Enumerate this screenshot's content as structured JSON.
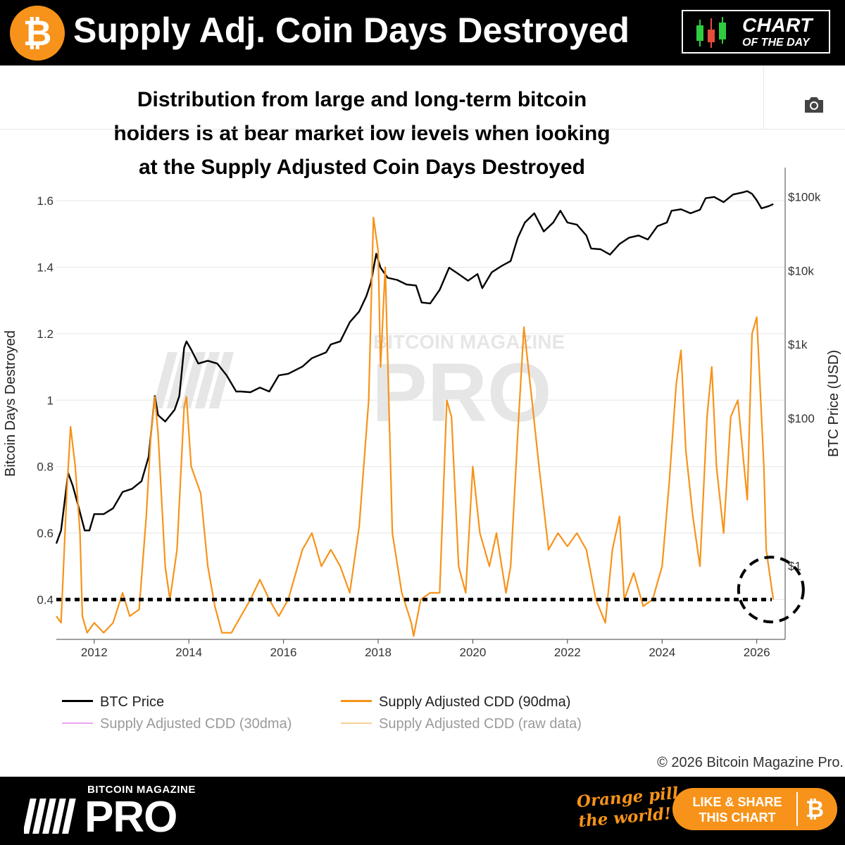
{
  "header": {
    "title": "Supply Adj. Coin Days Destroyed",
    "badge_line1": "CHART",
    "badge_line2": "OF THE DAY",
    "btc_symbol": "₿"
  },
  "subtitle": {
    "line1": "Distribution from large and long-term bitcoin",
    "line2": "holders is at bear market low levels when looking",
    "line3": "at the Supply Adjusted Coin Days Destroyed"
  },
  "watermark": {
    "small": "BITCOIN MAGAZINE",
    "big": "PRO"
  },
  "chart_data": {
    "type": "line",
    "title": "",
    "xlabel": "",
    "ylabel": "Bitcoin Days Destroyed",
    "y2label": "BTC Price (USD)",
    "x_ticks": [
      "2012",
      "2014",
      "2016",
      "2018",
      "2020",
      "2022",
      "2024",
      "2026"
    ],
    "xlim": [
      2011.2,
      2026.6
    ],
    "y_ticks": [
      "0.4",
      "0.6",
      "0.8",
      "1",
      "1.2",
      "1.4",
      "1.6"
    ],
    "ylim": [
      0.28,
      1.7
    ],
    "y2_ticks": [
      "$1",
      "$100",
      "$1k",
      "$10k",
      "$100k"
    ],
    "y2_scale": "log",
    "y2lim": [
      0.1,
      250000
    ],
    "threshold": {
      "value": 0.4,
      "style": "dotted"
    },
    "highlight": {
      "x": 2026.3,
      "y": 0.43,
      "shape": "dashed circle"
    },
    "series": [
      {
        "name": "BTC Price",
        "color": "#000000",
        "axis": "right",
        "points": [
          [
            2011.2,
            2
          ],
          [
            2011.3,
            3
          ],
          [
            2011.45,
            18
          ],
          [
            2011.55,
            12
          ],
          [
            2011.65,
            7
          ],
          [
            2011.8,
            3
          ],
          [
            2011.9,
            3
          ],
          [
            2012.0,
            5
          ],
          [
            2012.2,
            5
          ],
          [
            2012.4,
            6
          ],
          [
            2012.6,
            10
          ],
          [
            2012.8,
            11
          ],
          [
            2013.0,
            14
          ],
          [
            2013.15,
            30
          ],
          [
            2013.28,
            200
          ],
          [
            2013.35,
            110
          ],
          [
            2013.5,
            90
          ],
          [
            2013.7,
            130
          ],
          [
            2013.8,
            200
          ],
          [
            2013.9,
            900
          ],
          [
            2013.95,
            1100
          ],
          [
            2014.05,
            850
          ],
          [
            2014.2,
            550
          ],
          [
            2014.4,
            600
          ],
          [
            2014.6,
            550
          ],
          [
            2014.8,
            380
          ],
          [
            2015.0,
            230
          ],
          [
            2015.1,
            230
          ],
          [
            2015.3,
            225
          ],
          [
            2015.5,
            260
          ],
          [
            2015.7,
            230
          ],
          [
            2015.9,
            380
          ],
          [
            2016.1,
            400
          ],
          [
            2016.4,
            500
          ],
          [
            2016.6,
            650
          ],
          [
            2016.9,
            780
          ],
          [
            2017.0,
            1000
          ],
          [
            2017.2,
            1100
          ],
          [
            2017.4,
            2000
          ],
          [
            2017.6,
            2800
          ],
          [
            2017.75,
            4500
          ],
          [
            2017.85,
            7000
          ],
          [
            2017.96,
            17000
          ],
          [
            2018.05,
            11000
          ],
          [
            2018.2,
            8000
          ],
          [
            2018.4,
            7500
          ],
          [
            2018.6,
            6500
          ],
          [
            2018.8,
            6300
          ],
          [
            2018.92,
            3700
          ],
          [
            2019.1,
            3600
          ],
          [
            2019.3,
            5500
          ],
          [
            2019.5,
            11000
          ],
          [
            2019.7,
            9000
          ],
          [
            2019.9,
            7300
          ],
          [
            2020.1,
            9000
          ],
          [
            2020.2,
            5800
          ],
          [
            2020.4,
            9500
          ],
          [
            2020.6,
            11500
          ],
          [
            2020.8,
            13500
          ],
          [
            2020.95,
            28000
          ],
          [
            2021.1,
            45000
          ],
          [
            2021.3,
            60000
          ],
          [
            2021.5,
            34000
          ],
          [
            2021.7,
            45000
          ],
          [
            2021.85,
            65000
          ],
          [
            2022.0,
            45000
          ],
          [
            2022.2,
            42000
          ],
          [
            2022.4,
            30000
          ],
          [
            2022.5,
            20000
          ],
          [
            2022.7,
            19500
          ],
          [
            2022.9,
            16500
          ],
          [
            2023.1,
            23000
          ],
          [
            2023.3,
            28000
          ],
          [
            2023.5,
            30000
          ],
          [
            2023.7,
            26500
          ],
          [
            2023.9,
            40000
          ],
          [
            2024.1,
            45000
          ],
          [
            2024.2,
            65000
          ],
          [
            2024.4,
            68000
          ],
          [
            2024.6,
            60000
          ],
          [
            2024.8,
            67000
          ],
          [
            2024.92,
            96000
          ],
          [
            2025.1,
            100000
          ],
          [
            2025.3,
            85000
          ],
          [
            2025.5,
            108000
          ],
          [
            2025.7,
            115000
          ],
          [
            2025.8,
            120000
          ],
          [
            2025.9,
            110000
          ],
          [
            2026.0,
            90000
          ],
          [
            2026.1,
            70000
          ],
          [
            2026.25,
            75000
          ],
          [
            2026.35,
            80000
          ]
        ]
      },
      {
        "name": "Supply Adjusted CDD (90dma)",
        "color": "#f7931a",
        "axis": "left",
        "points": [
          [
            2011.2,
            0.35
          ],
          [
            2011.3,
            0.33
          ],
          [
            2011.42,
            0.72
          ],
          [
            2011.5,
            0.92
          ],
          [
            2011.6,
            0.8
          ],
          [
            2011.7,
            0.6
          ],
          [
            2011.75,
            0.35
          ],
          [
            2011.85,
            0.3
          ],
          [
            2012.0,
            0.33
          ],
          [
            2012.2,
            0.3
          ],
          [
            2012.4,
            0.33
          ],
          [
            2012.6,
            0.42
          ],
          [
            2012.75,
            0.35
          ],
          [
            2012.95,
            0.37
          ],
          [
            2013.1,
            0.65
          ],
          [
            2013.2,
            0.9
          ],
          [
            2013.28,
            1.01
          ],
          [
            2013.35,
            0.9
          ],
          [
            2013.5,
            0.5
          ],
          [
            2013.6,
            0.4
          ],
          [
            2013.75,
            0.55
          ],
          [
            2013.9,
            0.98
          ],
          [
            2013.95,
            1.01
          ],
          [
            2014.05,
            0.8
          ],
          [
            2014.25,
            0.72
          ],
          [
            2014.4,
            0.5
          ],
          [
            2014.55,
            0.38
          ],
          [
            2014.7,
            0.3
          ],
          [
            2014.9,
            0.3
          ],
          [
            2015.1,
            0.35
          ],
          [
            2015.3,
            0.4
          ],
          [
            2015.5,
            0.46
          ],
          [
            2015.7,
            0.4
          ],
          [
            2015.9,
            0.35
          ],
          [
            2016.1,
            0.4
          ],
          [
            2016.4,
            0.55
          ],
          [
            2016.6,
            0.6
          ],
          [
            2016.8,
            0.5
          ],
          [
            2017.0,
            0.55
          ],
          [
            2017.2,
            0.5
          ],
          [
            2017.4,
            0.42
          ],
          [
            2017.6,
            0.62
          ],
          [
            2017.8,
            1.0
          ],
          [
            2017.9,
            1.55
          ],
          [
            2018.0,
            1.45
          ],
          [
            2018.05,
            1.1
          ],
          [
            2018.15,
            1.4
          ],
          [
            2018.3,
            0.6
          ],
          [
            2018.5,
            0.42
          ],
          [
            2018.7,
            0.33
          ],
          [
            2018.75,
            0.29
          ],
          [
            2018.9,
            0.4
          ],
          [
            2019.1,
            0.42
          ],
          [
            2019.3,
            0.42
          ],
          [
            2019.45,
            1.0
          ],
          [
            2019.55,
            0.95
          ],
          [
            2019.7,
            0.5
          ],
          [
            2019.85,
            0.42
          ],
          [
            2020.0,
            0.8
          ],
          [
            2020.15,
            0.6
          ],
          [
            2020.35,
            0.5
          ],
          [
            2020.5,
            0.6
          ],
          [
            2020.7,
            0.42
          ],
          [
            2020.8,
            0.5
          ],
          [
            2020.95,
            0.9
          ],
          [
            2021.08,
            1.22
          ],
          [
            2021.25,
            1.0
          ],
          [
            2021.4,
            0.8
          ],
          [
            2021.6,
            0.55
          ],
          [
            2021.8,
            0.6
          ],
          [
            2022.0,
            0.56
          ],
          [
            2022.2,
            0.6
          ],
          [
            2022.4,
            0.55
          ],
          [
            2022.6,
            0.4
          ],
          [
            2022.8,
            0.33
          ],
          [
            2022.95,
            0.55
          ],
          [
            2023.1,
            0.65
          ],
          [
            2023.2,
            0.4
          ],
          [
            2023.4,
            0.48
          ],
          [
            2023.6,
            0.38
          ],
          [
            2023.8,
            0.4
          ],
          [
            2024.0,
            0.5
          ],
          [
            2024.15,
            0.75
          ],
          [
            2024.3,
            1.05
          ],
          [
            2024.4,
            1.15
          ],
          [
            2024.5,
            0.85
          ],
          [
            2024.65,
            0.65
          ],
          [
            2024.8,
            0.5
          ],
          [
            2024.95,
            0.95
          ],
          [
            2025.05,
            1.1
          ],
          [
            2025.15,
            0.8
          ],
          [
            2025.3,
            0.6
          ],
          [
            2025.45,
            0.95
          ],
          [
            2025.6,
            1.0
          ],
          [
            2025.8,
            0.7
          ],
          [
            2025.9,
            1.2
          ],
          [
            2026.0,
            1.25
          ],
          [
            2026.15,
            0.8
          ],
          [
            2026.2,
            0.55
          ],
          [
            2026.3,
            0.45
          ],
          [
            2026.35,
            0.4
          ]
        ]
      },
      {
        "name": "Supply Adjusted CDD (30dma)",
        "color": "#e9a6f0",
        "visible": false
      },
      {
        "name": "Supply Adjusted CDD (raw data)",
        "color": "#f5cf96",
        "visible": false
      }
    ]
  },
  "legend": {
    "btc_price": "BTC Price",
    "cdd_90": "Supply Adjusted CDD (90dma)",
    "cdd_30": "Supply Adjusted CDD (30dma)",
    "cdd_raw": "Supply Adjusted CDD (raw data)"
  },
  "copyright": "© 2026 Bitcoin Magazine Pro.",
  "footer": {
    "brand_small": "BITCOIN MAGAZINE",
    "brand_big": "PRO",
    "tagline_line1": "Orange pill",
    "tagline_line2": "the world!",
    "share_line1": "LIKE & SHARE",
    "share_line2": "THIS CHART",
    "btc_symbol": "₿"
  }
}
